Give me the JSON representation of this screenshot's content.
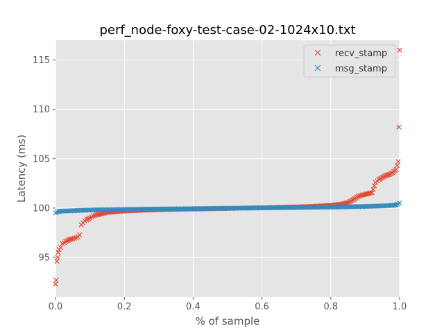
{
  "chart_data": {
    "type": "scatter",
    "title": "perf_node-foxy-test-case-02-1024x10.txt",
    "xlabel": "% of sample",
    "ylabel": "Latency (ms)",
    "xlim": [
      0.0,
      1.0
    ],
    "ylim": [
      91.0,
      117.0
    ],
    "xticks": [
      0.0,
      0.2,
      0.4,
      0.6,
      0.8,
      1.0
    ],
    "xtick_labels": [
      "0.0",
      "0.2",
      "0.4",
      "0.6",
      "0.8",
      "1.0"
    ],
    "yticks": [
      95,
      100,
      105,
      110,
      115
    ],
    "ytick_labels": [
      "95",
      "100",
      "105",
      "110",
      "115"
    ],
    "grid": true,
    "legend_position": "top-right",
    "marker": "x",
    "series": [
      {
        "name": "recv_stamp",
        "color": "#E24A33",
        "x": [
          0.0,
          0.002,
          0.004,
          0.006,
          0.008,
          0.01,
          0.015,
          0.02,
          0.03,
          0.04,
          0.05,
          0.06,
          0.065,
          0.07,
          0.075,
          0.08,
          0.085,
          0.09,
          0.1,
          0.11,
          0.12,
          0.13,
          0.15,
          0.18,
          0.2,
          0.25,
          0.3,
          0.35,
          0.4,
          0.45,
          0.5,
          0.55,
          0.6,
          0.65,
          0.7,
          0.75,
          0.8,
          0.83,
          0.85,
          0.86,
          0.87,
          0.88,
          0.9,
          0.92,
          0.93,
          0.94,
          0.95,
          0.96,
          0.97,
          0.98,
          0.99,
          0.993,
          0.996,
          0.998,
          1.0
        ],
        "y": [
          92.3,
          92.7,
          94.6,
          95.0,
          95.5,
          95.8,
          96.0,
          96.4,
          96.6,
          96.8,
          96.9,
          97.0,
          97.1,
          97.3,
          98.3,
          98.5,
          98.7,
          98.8,
          99.0,
          99.2,
          99.3,
          99.4,
          99.55,
          99.65,
          99.7,
          99.78,
          99.83,
          99.87,
          99.9,
          99.93,
          99.96,
          100.0,
          100.03,
          100.07,
          100.12,
          100.18,
          100.28,
          100.4,
          100.55,
          100.75,
          100.95,
          101.2,
          101.4,
          101.55,
          102.6,
          102.9,
          103.1,
          103.3,
          103.4,
          103.6,
          103.9,
          104.3,
          104.7,
          108.2,
          116.0
        ]
      },
      {
        "name": "msg_stamp",
        "color": "#348ABD",
        "x": [
          0.0,
          0.005,
          0.01,
          0.02,
          0.04,
          0.06,
          0.08,
          0.1,
          0.15,
          0.2,
          0.25,
          0.3,
          0.35,
          0.4,
          0.45,
          0.5,
          0.55,
          0.6,
          0.65,
          0.7,
          0.75,
          0.8,
          0.85,
          0.9,
          0.95,
          0.98,
          0.99,
          0.995,
          1.0
        ],
        "y": [
          99.5,
          99.6,
          99.65,
          99.7,
          99.72,
          99.75,
          99.78,
          99.8,
          99.83,
          99.86,
          99.88,
          99.9,
          99.92,
          99.94,
          99.96,
          99.98,
          100.0,
          100.02,
          100.04,
          100.06,
          100.08,
          100.1,
          100.13,
          100.17,
          100.22,
          100.27,
          100.33,
          100.4,
          100.5
        ]
      }
    ]
  }
}
